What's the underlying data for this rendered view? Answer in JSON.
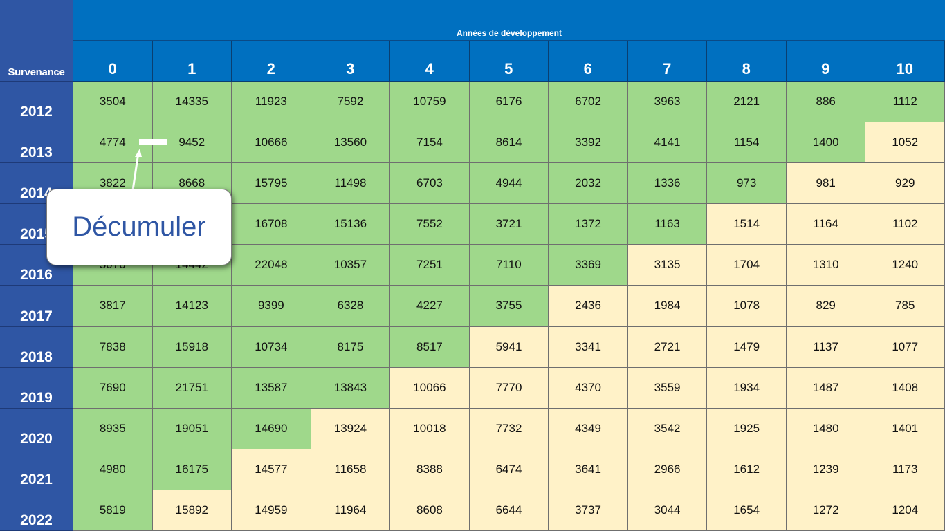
{
  "corner_label": "Survenance",
  "header_band": "Années de développement",
  "dev_years": [
    "0",
    "1",
    "2",
    "3",
    "4",
    "5",
    "6",
    "7",
    "8",
    "9",
    "10"
  ],
  "rows": [
    {
      "year": "2012",
      "values": [
        "3504",
        "14335",
        "11923",
        "7592",
        "10759",
        "6176",
        "6702",
        "3963",
        "2121",
        "886",
        "1112"
      ]
    },
    {
      "year": "2013",
      "values": [
        "4774",
        "9452",
        "10666",
        "13560",
        "7154",
        "8614",
        "3392",
        "4141",
        "1154",
        "1400",
        "1052"
      ]
    },
    {
      "year": "2014",
      "values": [
        "3822",
        "8668",
        "15795",
        "11498",
        "6703",
        "4944",
        "2032",
        "1336",
        "973",
        "981",
        "929"
      ]
    },
    {
      "year": "2015",
      "values": [
        "",
        "",
        "16708",
        "15136",
        "7552",
        "3721",
        "1372",
        "1163",
        "1514",
        "1164",
        "1102"
      ]
    },
    {
      "year": "2016",
      "values": [
        "5070",
        "14442",
        "22048",
        "10357",
        "7251",
        "7110",
        "3369",
        "3135",
        "1704",
        "1310",
        "1240"
      ]
    },
    {
      "year": "2017",
      "values": [
        "3817",
        "14123",
        "9399",
        "6328",
        "4227",
        "3755",
        "2436",
        "1984",
        "1078",
        "829",
        "785"
      ]
    },
    {
      "year": "2018",
      "values": [
        "7838",
        "15918",
        "10734",
        "8175",
        "8517",
        "5941",
        "3341",
        "2721",
        "1479",
        "1137",
        "1077"
      ]
    },
    {
      "year": "2019",
      "values": [
        "7690",
        "21751",
        "13587",
        "13843",
        "10066",
        "7770",
        "4370",
        "3559",
        "1934",
        "1487",
        "1408"
      ]
    },
    {
      "year": "2020",
      "values": [
        "8935",
        "19051",
        "14690",
        "13924",
        "10018",
        "7732",
        "4349",
        "3542",
        "1925",
        "1480",
        "1401"
      ]
    },
    {
      "year": "2021",
      "values": [
        "4980",
        "16175",
        "14577",
        "11658",
        "8388",
        "6474",
        "3641",
        "2966",
        "1612",
        "1239",
        "1173"
      ]
    },
    {
      "year": "2022",
      "values": [
        "5819",
        "15892",
        "14959",
        "11964",
        "8608",
        "6644",
        "3737",
        "3044",
        "1654",
        "1272",
        "1204"
      ]
    }
  ],
  "known_cell_color": "#9fd88b",
  "future_cell_color": "#fff2c8",
  "header_color": "#0070c0",
  "row_header_color": "#2f56a4",
  "callout_label": "Décumuler",
  "callout_icon": "arrow-up-icon"
}
